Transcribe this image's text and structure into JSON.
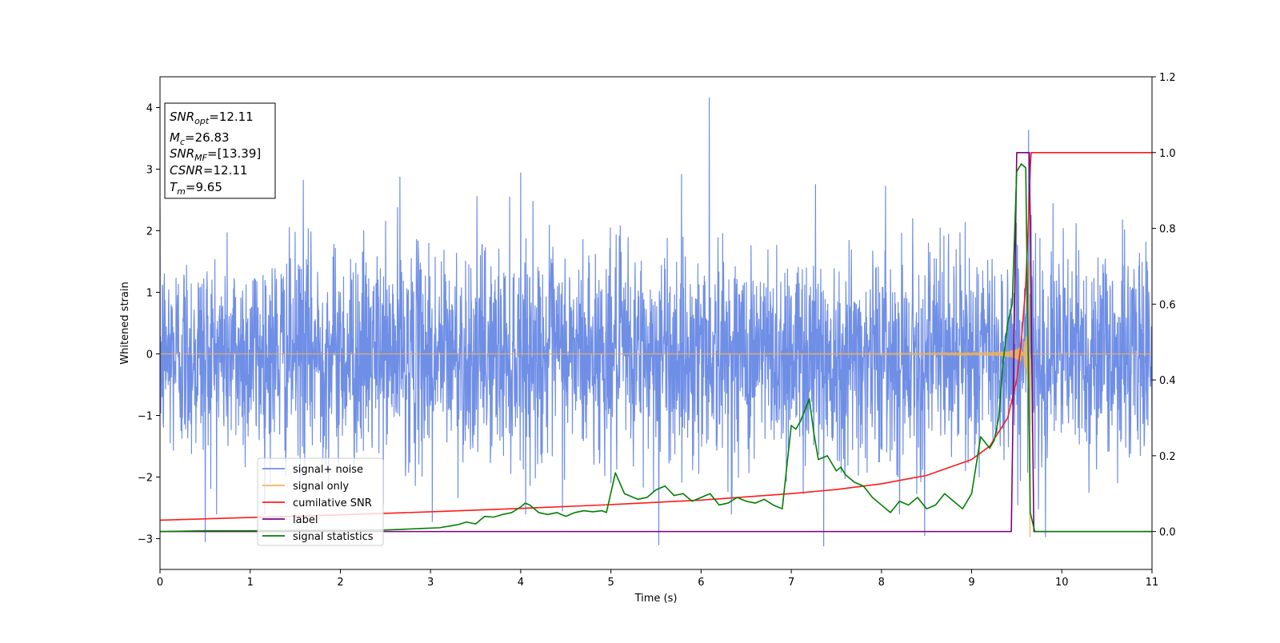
{
  "chart_data": {
    "type": "line",
    "xlabel": "Time (s)",
    "ylabel": "Whitened strain",
    "xlim": [
      0,
      11
    ],
    "ylim_left": [
      -3.5,
      4.5
    ],
    "ylim_right": [
      -0.1,
      1.2
    ],
    "x_ticks": [
      0,
      1,
      2,
      3,
      4,
      5,
      6,
      7,
      8,
      9,
      10,
      11
    ],
    "y_ticks_left": [
      -3,
      -2,
      -1,
      0,
      1,
      2,
      3,
      4
    ],
    "y_ticks_right": [
      0.0,
      0.2,
      0.4,
      0.6,
      0.8,
      1.0,
      1.2
    ],
    "y_tick_labels_left": [
      "−3",
      "−2",
      "−1",
      "0",
      "1",
      "2",
      "3",
      "4"
    ],
    "y_tick_labels_right": [
      "0.0",
      "0.2",
      "0.4",
      "0.6",
      "0.8",
      "1.0",
      "1.2"
    ],
    "grid": false,
    "legend_position": "lower-left",
    "info_box": [
      {
        "base": "SNR",
        "sub": "opt",
        "value": "=12.11"
      },
      {
        "base": "M",
        "sub": "c",
        "value": "=26.83"
      },
      {
        "base": "SNR",
        "sub": "MF",
        "value": "=[13.39]"
      },
      {
        "base": "CSNR",
        "sub": "",
        "value": "=12.11"
      },
      {
        "base": "T",
        "sub": "m",
        "value": "=9.65"
      }
    ],
    "series": [
      {
        "name": "signal+ noise",
        "axis": "left",
        "color": "#6f8ee6",
        "description_kind": "noise",
        "noise_std": 0.85,
        "spikes": [
          [
            0.5,
            -3.05
          ],
          [
            1.59,
            2.82
          ],
          [
            2.66,
            2.87
          ],
          [
            3.02,
            -2.72
          ],
          [
            4.0,
            2.94
          ],
          [
            5.53,
            -3.1
          ],
          [
            6.09,
            4.16
          ],
          [
            7.27,
            2.75
          ],
          [
            7.36,
            -3.12
          ],
          [
            8.48,
            -2.95
          ],
          [
            9.63,
            3.63
          ],
          [
            9.82,
            -2.97
          ]
        ]
      },
      {
        "name": "signal only",
        "axis": "left",
        "color": "#f0b45a",
        "description_kind": "chirp",
        "merger_time": 9.65,
        "peak_amplitude": 3.25
      },
      {
        "name": "cumilative SNR",
        "axis": "right",
        "color": "#ff1a1a",
        "x": [
          0,
          1,
          2,
          3,
          4,
          5,
          6,
          7,
          7.5,
          8,
          8.5,
          9,
          9.2,
          9.4,
          9.5,
          9.55,
          9.6,
          9.63,
          9.65,
          9.66,
          11
        ],
        "y": [
          0.03,
          0.037,
          0.044,
          0.052,
          0.061,
          0.071,
          0.083,
          0.1,
          0.111,
          0.126,
          0.148,
          0.19,
          0.225,
          0.3,
          0.4,
          0.5,
          0.65,
          0.82,
          0.96,
          1.0,
          1.0
        ]
      },
      {
        "name": "label",
        "axis": "right",
        "color": "#800080",
        "x": [
          0,
          9.44,
          9.5,
          9.64,
          9.69,
          11
        ],
        "y": [
          0,
          0,
          1.0,
          1.0,
          0,
          0
        ]
      },
      {
        "name": "signal statistics",
        "axis": "right",
        "color": "#008000",
        "x": [
          0,
          0.5,
          1,
          1.5,
          2,
          2.5,
          2.7,
          2.9,
          3.1,
          3.3,
          3.4,
          3.5,
          3.6,
          3.7,
          3.8,
          3.9,
          4.0,
          4.05,
          4.1,
          4.2,
          4.3,
          4.4,
          4.5,
          4.6,
          4.7,
          4.8,
          4.9,
          4.95,
          5.05,
          5.15,
          5.3,
          5.4,
          5.5,
          5.6,
          5.7,
          5.8,
          5.9,
          6.0,
          6.1,
          6.2,
          6.3,
          6.4,
          6.5,
          6.6,
          6.7,
          6.8,
          6.9,
          7.0,
          7.05,
          7.1,
          7.2,
          7.25,
          7.3,
          7.4,
          7.5,
          7.55,
          7.6,
          7.7,
          7.8,
          7.9,
          8.0,
          8.1,
          8.2,
          8.3,
          8.4,
          8.5,
          8.6,
          8.7,
          8.8,
          8.9,
          9.0,
          9.1,
          9.2,
          9.25,
          9.3,
          9.35,
          9.4,
          9.45,
          9.5,
          9.55,
          9.6,
          9.65,
          9.7,
          11
        ],
        "y": [
          0.0,
          0.002,
          0.002,
          0.003,
          0.003,
          0.004,
          0.006,
          0.008,
          0.01,
          0.018,
          0.025,
          0.02,
          0.04,
          0.038,
          0.045,
          0.05,
          0.065,
          0.075,
          0.07,
          0.05,
          0.045,
          0.05,
          0.04,
          0.05,
          0.055,
          0.052,
          0.055,
          0.05,
          0.155,
          0.1,
          0.085,
          0.09,
          0.11,
          0.12,
          0.095,
          0.1,
          0.08,
          0.09,
          0.1,
          0.07,
          0.075,
          0.09,
          0.08,
          0.075,
          0.085,
          0.07,
          0.06,
          0.28,
          0.27,
          0.29,
          0.35,
          0.26,
          0.19,
          0.2,
          0.16,
          0.17,
          0.15,
          0.13,
          0.12,
          0.09,
          0.07,
          0.05,
          0.08,
          0.07,
          0.09,
          0.06,
          0.07,
          0.1,
          0.08,
          0.06,
          0.1,
          0.25,
          0.22,
          0.24,
          0.3,
          0.45,
          0.55,
          0.6,
          0.95,
          0.97,
          0.96,
          0.05,
          0.0,
          0.0
        ]
      }
    ]
  }
}
